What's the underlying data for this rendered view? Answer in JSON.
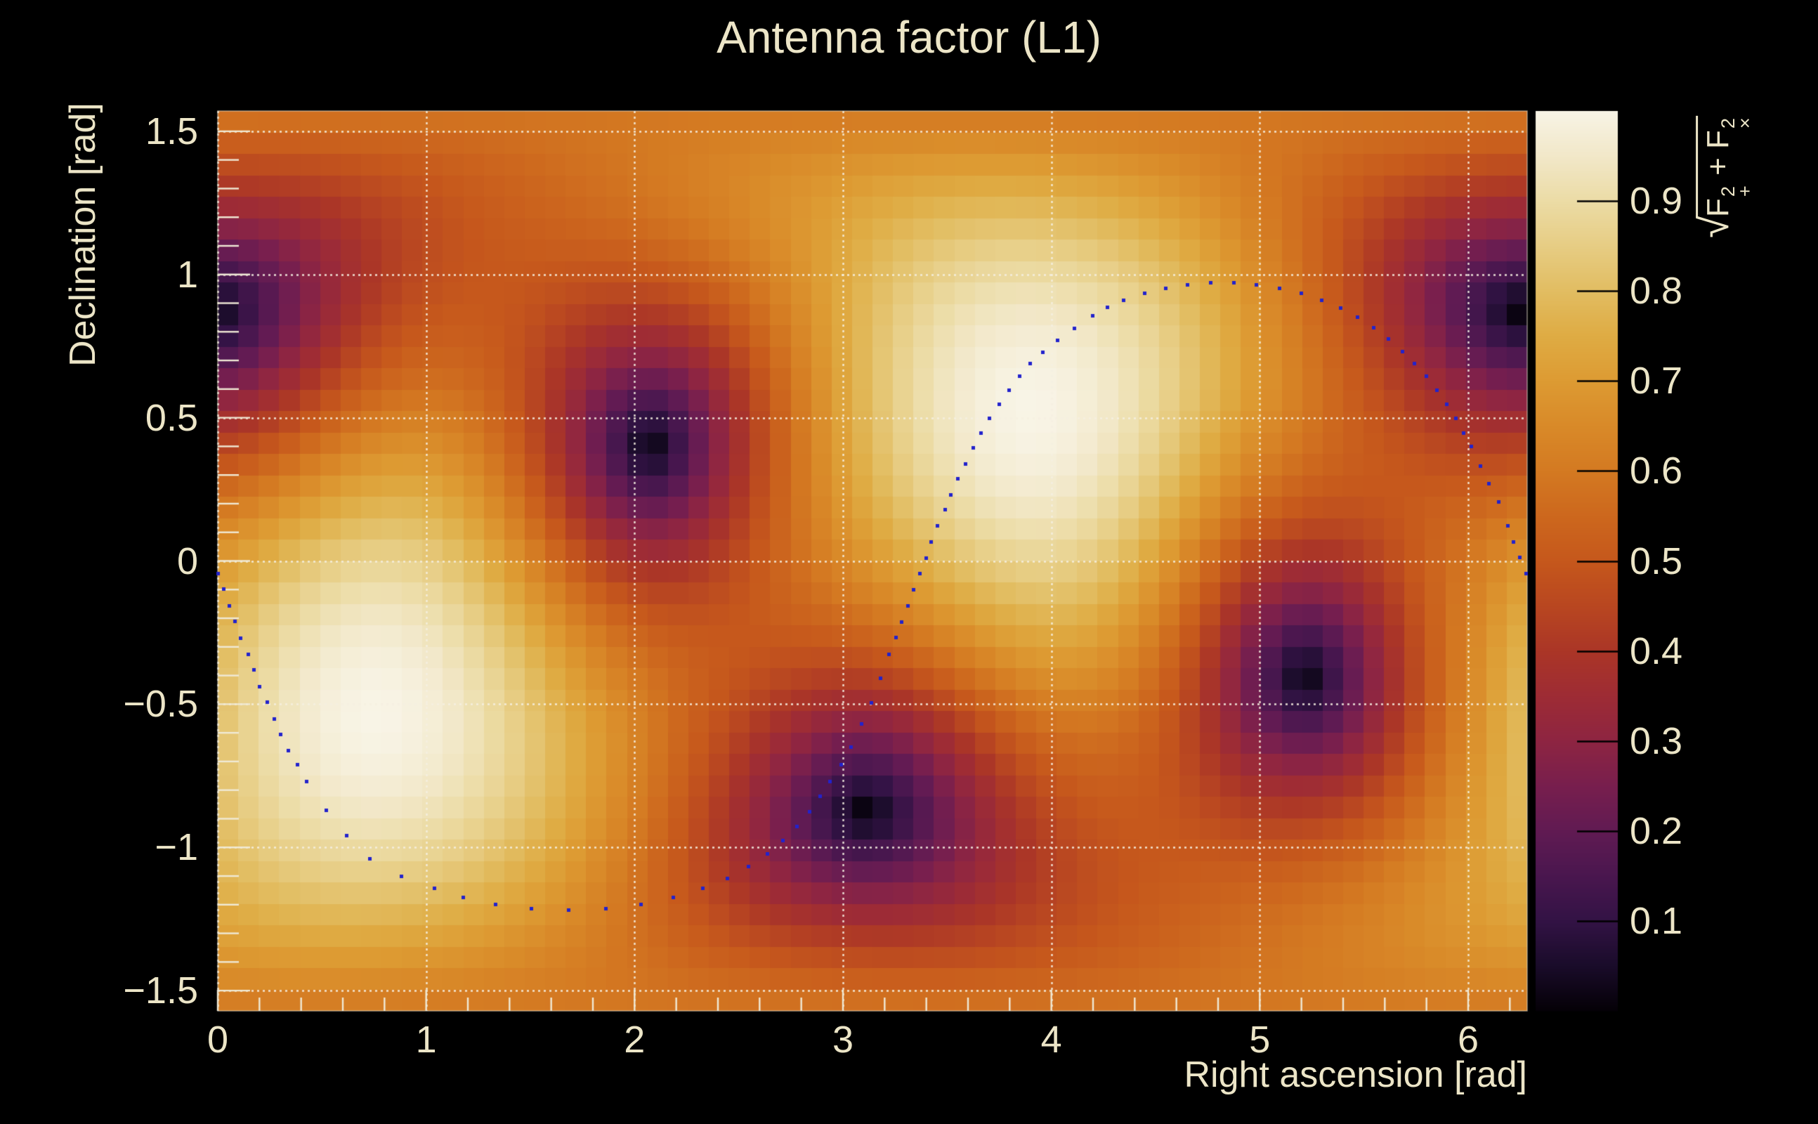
{
  "page": {
    "background": "#000000",
    "text_color": "#ece5c7"
  },
  "title": "Antenna factor (L1)",
  "formula": {
    "radical": "√",
    "f1": "F",
    "sup1": "2",
    "sub1": "+",
    "plus": " + ",
    "f2": "F",
    "sup2": "2",
    "sub2": "×"
  },
  "chart_data": {
    "type": "heatmap",
    "title": "Antenna factor (L1)",
    "xlabel": "Right ascension [rad]",
    "ylabel": "Declination [rad]",
    "zlabel": "sqrt(F+^2 + Fx^2)",
    "x_range": [
      0,
      6.283185
    ],
    "y_range": [
      -1.570796,
      1.570796
    ],
    "z_range": [
      0,
      1
    ],
    "x_tick_values": [
      0,
      1,
      2,
      3,
      4,
      5,
      6
    ],
    "x_tick_labels": [
      "0",
      "1",
      "2",
      "3",
      "4",
      "5",
      "6"
    ],
    "x_minor_step": 0.2,
    "y_tick_values": [
      1.5,
      1,
      0.5,
      0,
      -0.5,
      -1,
      -1.5
    ],
    "y_tick_labels": [
      "1.5",
      "1",
      "0.5",
      "0",
      "−0.5",
      "−1",
      "−1.5"
    ],
    "y_minor_step": 0.1,
    "z_tick_values": [
      0.9,
      0.8,
      0.7,
      0.6,
      0.5,
      0.4,
      0.3,
      0.2,
      0.1
    ],
    "z_tick_labels": [
      "0.9",
      "0.8",
      "0.7",
      "0.6",
      "0.5",
      "0.4",
      "0.3",
      "0.2",
      "0.1"
    ],
    "grid": true,
    "bins": {
      "nx": 64,
      "ny": 42
    },
    "palette": [
      [
        0.0,
        "#050107"
      ],
      [
        0.05,
        "#1a0c2a"
      ],
      [
        0.1,
        "#331345"
      ],
      [
        0.15,
        "#4a174f"
      ],
      [
        0.2,
        "#611b53"
      ],
      [
        0.25,
        "#781f4e"
      ],
      [
        0.3,
        "#8e2542"
      ],
      [
        0.35,
        "#9e2c35"
      ],
      [
        0.4,
        "#ab3627"
      ],
      [
        0.45,
        "#b94721"
      ],
      [
        0.5,
        "#c6581c"
      ],
      [
        0.55,
        "#cd681e"
      ],
      [
        0.6,
        "#d47a22"
      ],
      [
        0.65,
        "#d98a29"
      ],
      [
        0.7,
        "#dd9b33"
      ],
      [
        0.75,
        "#dfac44"
      ],
      [
        0.8,
        "#e2bd62"
      ],
      [
        0.85,
        "#e7cd84"
      ],
      [
        0.9,
        "#ecdca6"
      ],
      [
        0.95,
        "#f2e8c9"
      ],
      [
        1.0,
        "#f8f4e6"
      ]
    ],
    "pattern_model": {
      "zenith_ra": 3.9,
      "zenith_dec": 0.533,
      "arm_azimuth_x_deg": 252.28,
      "arm_azimuth_y_deg": 162.28,
      "maxima": [
        [
          0.758,
          -0.533
        ],
        [
          3.9,
          0.533
        ]
      ],
      "nulls": [
        [
          2.073,
          0.406
        ],
        [
          3.107,
          -0.871
        ],
        [
          5.214,
          -0.406
        ],
        [
          6.248,
          0.871
        ]
      ]
    },
    "overlay_curve": {
      "color": "#2222cc",
      "marker_px": 5,
      "style": "dotted-markers",
      "points": [
        [
          0.0,
          -0.043
        ],
        [
          0.027,
          -0.097
        ],
        [
          0.057,
          -0.156
        ],
        [
          0.084,
          -0.21
        ],
        [
          0.111,
          -0.269
        ],
        [
          0.145,
          -0.325
        ],
        [
          0.172,
          -0.381
        ],
        [
          0.202,
          -0.438
        ],
        [
          0.236,
          -0.494
        ],
        [
          0.27,
          -0.551
        ],
        [
          0.303,
          -0.605
        ],
        [
          0.34,
          -0.663
        ],
        [
          0.381,
          -0.712
        ],
        [
          0.425,
          -0.771
        ],
        [
          0.52,
          -0.87
        ],
        [
          0.62,
          -0.96
        ],
        [
          0.73,
          -1.04
        ],
        [
          0.88,
          -1.1
        ],
        [
          1.041,
          -1.144
        ],
        [
          1.177,
          -1.175
        ],
        [
          1.334,
          -1.2
        ],
        [
          1.506,
          -1.213
        ],
        [
          1.683,
          -1.218
        ],
        [
          1.861,
          -1.213
        ],
        [
          2.031,
          -1.199
        ],
        [
          2.187,
          -1.174
        ],
        [
          2.326,
          -1.143
        ],
        [
          2.444,
          -1.108
        ],
        [
          2.545,
          -1.066
        ],
        [
          2.637,
          -1.022
        ],
        [
          2.711,
          -0.975
        ],
        [
          2.779,
          -0.926
        ],
        [
          2.839,
          -0.875
        ],
        [
          2.892,
          -0.822
        ],
        [
          2.939,
          -0.769
        ],
        [
          2.99,
          -0.71
        ],
        [
          3.04,
          -0.65
        ],
        [
          3.09,
          -0.57
        ],
        [
          3.135,
          -0.495
        ],
        [
          3.18,
          -0.41
        ],
        [
          3.222,
          -0.325
        ],
        [
          3.255,
          -0.268
        ],
        [
          3.283,
          -0.213
        ],
        [
          3.311,
          -0.156
        ],
        [
          3.34,
          -0.101
        ],
        [
          3.368,
          -0.044
        ],
        [
          3.398,
          0.011
        ],
        [
          3.424,
          0.065
        ],
        [
          3.454,
          0.123
        ],
        [
          3.489,
          0.178
        ],
        [
          3.517,
          0.231
        ],
        [
          3.551,
          0.286
        ],
        [
          3.587,
          0.339
        ],
        [
          3.624,
          0.394
        ],
        [
          3.663,
          0.446
        ],
        [
          3.703,
          0.497
        ],
        [
          3.749,
          0.546
        ],
        [
          3.797,
          0.595
        ],
        [
          3.848,
          0.644
        ],
        [
          3.9,
          0.689
        ],
        [
          3.96,
          0.728
        ],
        [
          4.03,
          0.77
        ],
        [
          4.11,
          0.812
        ],
        [
          4.2,
          0.855
        ],
        [
          4.27,
          0.885
        ],
        [
          4.348,
          0.909
        ],
        [
          4.447,
          0.934
        ],
        [
          4.548,
          0.951
        ],
        [
          4.655,
          0.963
        ],
        [
          4.766,
          0.971
        ],
        [
          4.877,
          0.971
        ],
        [
          4.985,
          0.963
        ],
        [
          5.096,
          0.951
        ],
        [
          5.2,
          0.934
        ],
        [
          5.298,
          0.909
        ],
        [
          5.389,
          0.882
        ],
        [
          5.47,
          0.85
        ],
        [
          5.547,
          0.813
        ],
        [
          5.618,
          0.774
        ],
        [
          5.685,
          0.732
        ],
        [
          5.742,
          0.688
        ],
        [
          5.8,
          0.644
        ],
        [
          5.85,
          0.595
        ],
        [
          5.897,
          0.546
        ],
        [
          5.941,
          0.497
        ],
        [
          5.978,
          0.446
        ],
        [
          6.015,
          0.399
        ],
        [
          6.06,
          0.33
        ],
        [
          6.1,
          0.27
        ],
        [
          6.145,
          0.205
        ],
        [
          6.19,
          0.123
        ],
        [
          6.218,
          0.066
        ],
        [
          6.248,
          0.012
        ],
        [
          6.278,
          -0.043
        ]
      ]
    },
    "layout_hints": {
      "legend": "none",
      "colorbar_position": "right",
      "grid_style": "dotted"
    }
  },
  "colors": {
    "grid": "rgba(245,240,226,0.92)",
    "ticks": "#f0ead6",
    "frame": "rgba(240,234,214,0.55)",
    "colorbar_tick": "#000000",
    "curve": "#2222cc"
  }
}
